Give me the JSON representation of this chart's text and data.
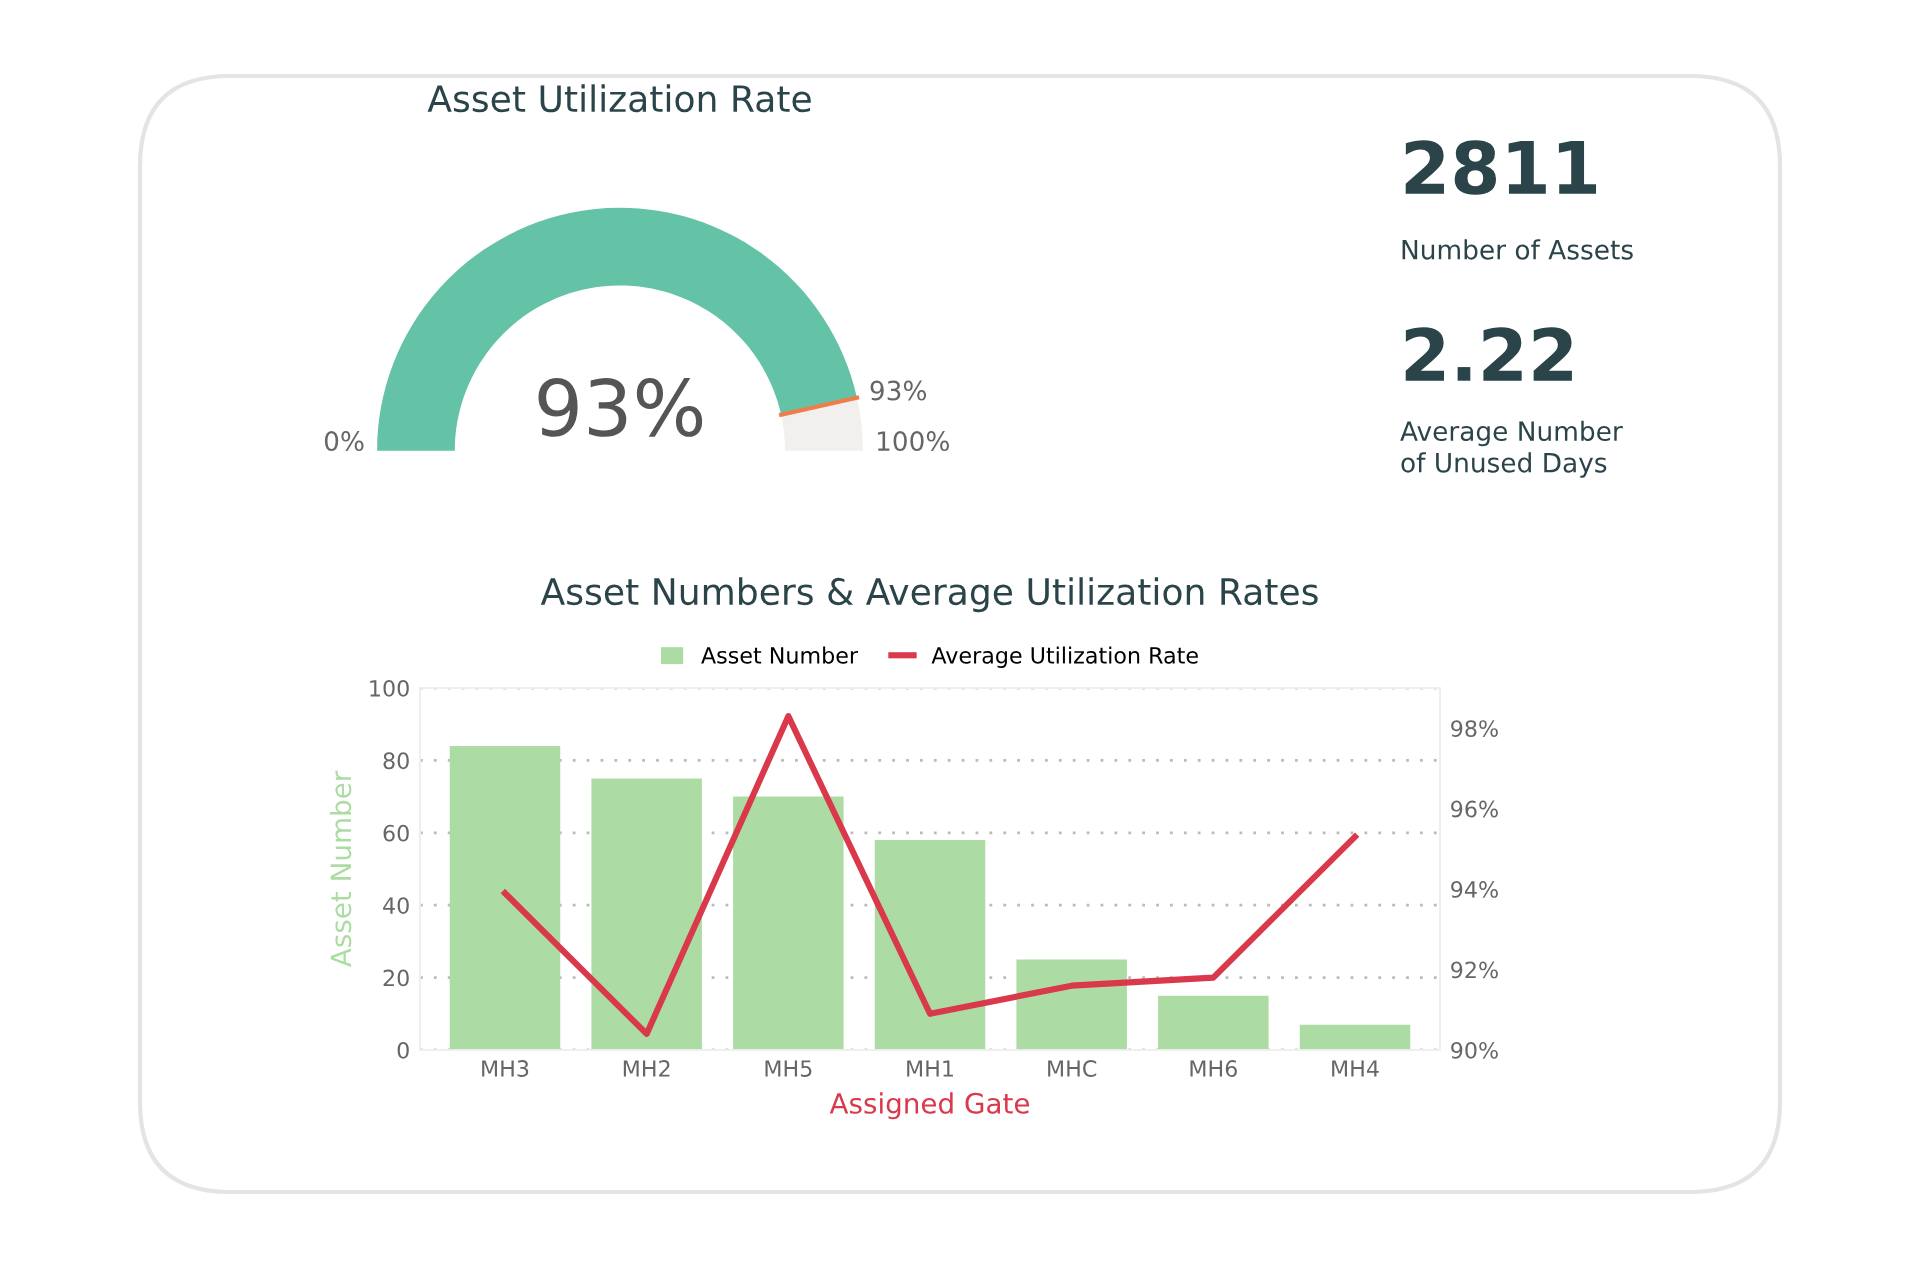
{
  "chart_data": [
    {
      "type": "donut",
      "title": "Asset Utilization Rate",
      "categories": [
        null,
        null
      ],
      "values": [
        93,
        7
      ],
      "colors": [
        "#64c3a6",
        "#f1f0ee"
      ],
      "value_labels": [
        "93%",
        null
      ],
      "annotations": [
        "0%",
        "93%",
        "100%"
      ]
    },
    {
      "type": "other",
      "annotations": [
        "2811",
        "Number of Assets",
        "2.22",
        "Average Number\nof Unused Days"
      ]
    },
    {
      "type": "bar",
      "title": "Asset Numbers & Average Utilization Rates",
      "xlabel": "Assigned Gate",
      "ylabel": "Asset Number",
      "categories": [
        "MH3",
        "MH2",
        "MH5",
        "MH1",
        "MHC",
        "MH6",
        "MH4"
      ],
      "series": [
        {
          "name": "Asset Number",
          "color": "#acdca4",
          "values": [
            84,
            75,
            70,
            58,
            25,
            15,
            7
          ]
        },
        {
          "name": "Average Utilization Rate",
          "type": "line",
          "axis": "y2",
          "color": "#d9394b",
          "values": [
            93.9,
            90.4,
            98.3,
            90.9,
            91.6,
            91.8,
            95.3
          ]
        }
      ],
      "ylim": [
        0,
        100
      ],
      "yticks": [
        0,
        20,
        40,
        60,
        80,
        100
      ],
      "y2lim": [
        90,
        99
      ],
      "y2ticks": [
        {
          "value": 90,
          "label": "90%"
        },
        {
          "value": 92,
          "label": "92%"
        },
        {
          "value": 94,
          "label": "94%"
        },
        {
          "value": 96,
          "label": "96%"
        },
        {
          "value": 98,
          "label": "98%"
        }
      ],
      "grid": "y",
      "legend": "top",
      "marker": "none",
      "line_style": "solid"
    }
  ]
}
